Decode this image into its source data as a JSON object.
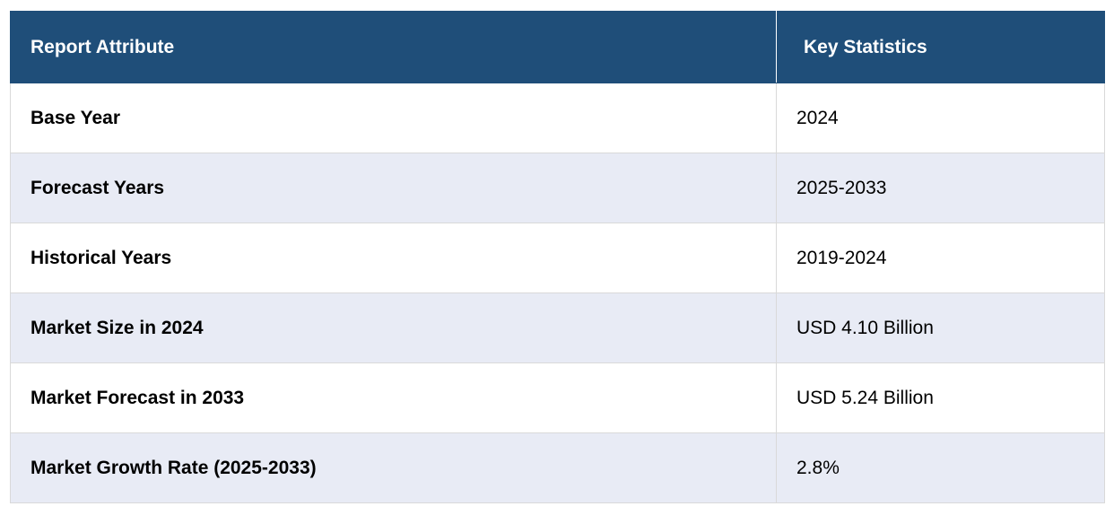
{
  "table": {
    "headers": [
      "Report Attribute",
      "Key Statistics"
    ],
    "rows": [
      {
        "attribute": "Base Year",
        "value": "2024"
      },
      {
        "attribute": "Forecast Years",
        "value": "2025-2033"
      },
      {
        "attribute": "Historical Years",
        "value": "2019-2024"
      },
      {
        "attribute": "Market Size in 2024",
        "value": "USD 4.10 Billion"
      },
      {
        "attribute": "Market Forecast in 2033",
        "value": "USD 5.24 Billion"
      },
      {
        "attribute": "Market Growth Rate (2025-2033)",
        "value": "2.8%"
      }
    ]
  },
  "colors": {
    "header_bg": "#1f4e79",
    "header_text": "#ffffff",
    "row_alt_bg": "#e8ebf5",
    "row_bg": "#ffffff"
  }
}
